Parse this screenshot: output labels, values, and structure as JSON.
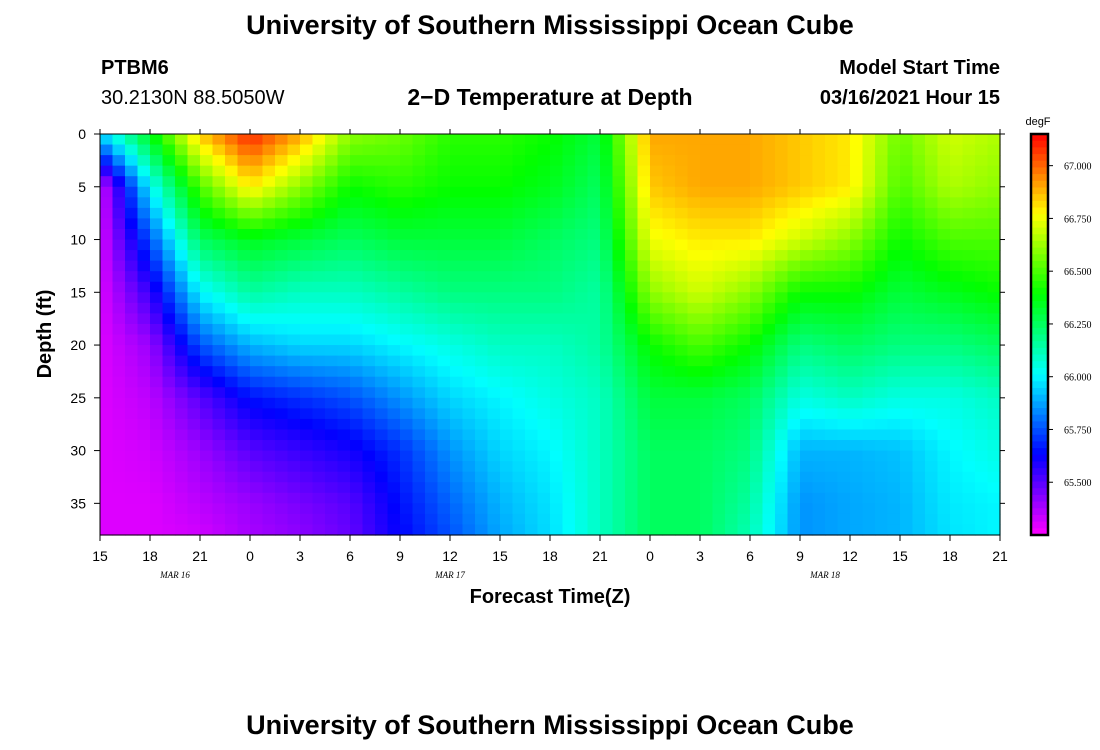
{
  "header": {
    "title_top": "University of Southern Mississippi Ocean Cube",
    "title_bottom": "University of Southern Mississippi Ocean Cube",
    "station_id": "PTBM6",
    "station_coords": "30.2130N 88.5050W",
    "plot_title": "2−D Temperature at Depth",
    "model_start_label": "Model Start Time",
    "model_start_value": "03/16/2021 Hour 15"
  },
  "colors": {
    "palette": [
      "#ff00ff",
      "#7f00ff",
      "#0000ff",
      "#007fff",
      "#00ffff",
      "#00ff7f",
      "#00ff00",
      "#7fff00",
      "#ffff00",
      "#ff7f00",
      "#ff0000"
    ]
  },
  "chart_data": {
    "type": "heatmap",
    "title": "2−D Temperature at Depth",
    "xlabel": "Forecast Time(Z)",
    "ylabel": "Depth (ft)",
    "colorbar_label": "degF",
    "x_tick_labels": [
      "15",
      "18",
      "21",
      "0",
      "3",
      "6",
      "9",
      "12",
      "15",
      "18",
      "21",
      "0",
      "3",
      "6",
      "9",
      "12",
      "15",
      "18",
      "21"
    ],
    "x_range_hours": [
      0,
      54
    ],
    "date_labels": [
      {
        "label": "MAR  16",
        "hour": 4.5
      },
      {
        "label": "MAR  17",
        "hour": 21
      },
      {
        "label": "MAR  18",
        "hour": 43.5
      }
    ],
    "y_ticks": [
      0,
      5,
      10,
      15,
      20,
      25,
      30,
      35
    ],
    "y_range": [
      0,
      38
    ],
    "y_inverted": true,
    "colorbar_ticks": [
      "65.500",
      "65.750",
      "66.000",
      "66.250",
      "66.500",
      "66.750",
      "67.000"
    ],
    "colorbar_range": [
      65.25,
      67.15
    ],
    "grid_hours": [
      0,
      3,
      6,
      9,
      12,
      15,
      18,
      21,
      24,
      27,
      30,
      33,
      36,
      39,
      42,
      45,
      48,
      51,
      54
    ],
    "grid_depths": [
      0,
      5,
      10,
      15,
      20,
      25,
      30,
      35,
      38
    ],
    "values_degF": [
      [
        65.95,
        65.3,
        65.3,
        65.3,
        65.3,
        65.3,
        65.3,
        65.3,
        65.3
      ],
      [
        66.35,
        66.0,
        65.75,
        65.55,
        65.4,
        65.35,
        65.32,
        65.3,
        65.3
      ],
      [
        66.85,
        66.5,
        66.25,
        66.0,
        65.75,
        65.5,
        65.4,
        65.35,
        65.32
      ],
      [
        67.1,
        66.8,
        66.35,
        66.15,
        65.9,
        65.65,
        65.5,
        65.4,
        65.38
      ],
      [
        66.9,
        66.6,
        66.3,
        66.1,
        65.95,
        65.7,
        65.55,
        65.45,
        65.42
      ],
      [
        66.6,
        66.4,
        66.25,
        66.1,
        65.95,
        65.75,
        65.6,
        65.5,
        65.48
      ],
      [
        66.55,
        66.45,
        66.3,
        66.15,
        66.0,
        65.85,
        65.7,
        65.65,
        65.63
      ],
      [
        66.45,
        66.4,
        66.3,
        66.2,
        66.05,
        65.95,
        65.85,
        65.78,
        65.75
      ],
      [
        66.45,
        66.4,
        66.3,
        66.2,
        66.1,
        66.0,
        65.95,
        65.9,
        65.88
      ],
      [
        66.4,
        66.35,
        66.25,
        66.2,
        66.1,
        66.05,
        66.0,
        65.97,
        65.96
      ],
      [
        66.3,
        66.25,
        66.2,
        66.15,
        66.15,
        66.1,
        66.1,
        66.1,
        66.1
      ],
      [
        66.9,
        66.85,
        66.75,
        66.6,
        66.4,
        66.3,
        66.25,
        66.25,
        66.25
      ],
      [
        66.9,
        66.9,
        66.8,
        66.7,
        66.5,
        66.3,
        66.25,
        66.25,
        66.25
      ],
      [
        66.9,
        66.9,
        66.8,
        66.6,
        66.4,
        66.25,
        66.2,
        66.15,
        66.12
      ],
      [
        66.85,
        66.85,
        66.7,
        66.4,
        66.2,
        66.05,
        65.9,
        65.85,
        65.85
      ],
      [
        66.8,
        66.8,
        66.6,
        66.4,
        66.25,
        66.1,
        65.9,
        65.88,
        65.88
      ],
      [
        66.55,
        66.5,
        66.4,
        66.3,
        66.2,
        66.05,
        65.92,
        65.9,
        65.9
      ],
      [
        66.7,
        66.65,
        66.5,
        66.35,
        66.2,
        66.05,
        66.0,
        65.98,
        65.97
      ],
      [
        66.65,
        66.6,
        66.5,
        66.4,
        66.25,
        66.1,
        66.05,
        66.0,
        66.0
      ]
    ]
  }
}
